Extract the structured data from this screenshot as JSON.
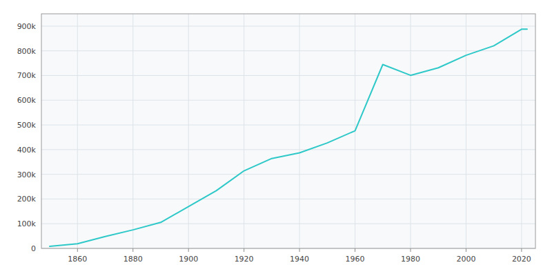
{
  "chart_data": {
    "type": "line",
    "x": [
      1850,
      1860,
      1870,
      1880,
      1890,
      1900,
      1910,
      1920,
      1930,
      1940,
      1950,
      1960,
      1970,
      1980,
      1990,
      2000,
      2010,
      2020,
      2022
    ],
    "values": [
      8091,
      18611,
      48244,
      75056,
      105436,
      169164,
      233650,
      314194,
      364161,
      386972,
      427173,
      476258,
      744624,
      700807,
      731327,
      781870,
      820445,
      887642,
      887642
    ],
    "color": "#2ec8c8",
    "xlim": [
      1847,
      2025
    ],
    "ylim": [
      0,
      950000
    ],
    "xticks": [
      1860,
      1880,
      1900,
      1920,
      1940,
      1960,
      1980,
      2000,
      2020
    ],
    "yticks": [
      0,
      {
        "value": 100000,
        "label": "100k"
      },
      {
        "value": 200000,
        "label": "200k"
      },
      {
        "value": 300000,
        "label": "300k"
      },
      {
        "value": 400000,
        "label": "400k"
      },
      {
        "value": 500000,
        "label": "500k"
      },
      {
        "value": 600000,
        "label": "600k"
      },
      {
        "value": 700000,
        "label": "700k"
      },
      {
        "value": 800000,
        "label": "800k"
      },
      {
        "value": 900000,
        "label": "900k"
      }
    ],
    "grid": true
  }
}
